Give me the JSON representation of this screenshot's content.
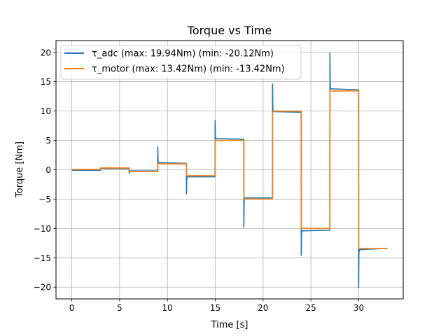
{
  "chart_data": {
    "type": "line",
    "title": "Torque vs Time",
    "xlabel": "Time [s]",
    "ylabel": "Torque [Nm]",
    "xlim": [
      -1.65,
      34.65
    ],
    "ylim": [
      -22.0,
      22.0
    ],
    "xticks": [
      0,
      5,
      10,
      15,
      20,
      25,
      30
    ],
    "yticks": [
      -20,
      -15,
      -10,
      -5,
      0,
      5,
      10,
      15,
      20
    ],
    "xtick_labels": [
      "0",
      "5",
      "10",
      "15",
      "20",
      "25",
      "30"
    ],
    "ytick_labels": [
      "−20",
      "−15",
      "−10",
      "−5",
      "0",
      "5",
      "10",
      "15",
      "20"
    ],
    "grid": true,
    "legend_position": "upper-left",
    "series": [
      {
        "name": "τ_adc (max: 19.94Nm) (min: -20.12Nm)",
        "color": "#1f77b4",
        "x": [
          0,
          3,
          3,
          6,
          6,
          6.02,
          6.05,
          8.98,
          8.99,
          9.02,
          9.1,
          11.98,
          11.99,
          12.02,
          12.1,
          14.98,
          14.99,
          15.02,
          15.1,
          17.98,
          17.99,
          18.02,
          18.1,
          20.98,
          20.99,
          21.02,
          21.1,
          23.98,
          23.99,
          24.02,
          24.1,
          26.98,
          26.99,
          27.02,
          27.1,
          29.98,
          29.99,
          30.02,
          30.1,
          33
        ],
        "y": [
          -0.1,
          -0.1,
          0.2,
          0.2,
          -0.5,
          -0.6,
          -0.2,
          -0.2,
          3.9,
          1.4,
          1.2,
          1.1,
          -4.1,
          -1.5,
          -1.2,
          -1.2,
          8.4,
          5.6,
          5.3,
          5.2,
          -9.8,
          -5.3,
          -4.8,
          -4.8,
          14.6,
          10.3,
          9.9,
          9.8,
          -14.6,
          -10.8,
          -10.4,
          -10.3,
          19.94,
          14.1,
          13.8,
          13.6,
          -20.12,
          -14.1,
          -13.6,
          -13.4
        ]
      },
      {
        "name": "τ_motor (max: 13.42Nm) (min: -13.42Nm)",
        "color": "#ff7f0e",
        "x": [
          0,
          3,
          3,
          6,
          6,
          9,
          9,
          12,
          12,
          15,
          15,
          18,
          18,
          21,
          21,
          24,
          24,
          27,
          27,
          30,
          30,
          33
        ],
        "y": [
          0.05,
          0.05,
          0.3,
          0.3,
          -0.3,
          -0.3,
          1.0,
          1.0,
          -1.0,
          -1.0,
          5.0,
          5.0,
          -5.0,
          -5.0,
          10.0,
          10.0,
          -10.0,
          -10.0,
          13.42,
          13.42,
          -13.42,
          -13.42
        ]
      }
    ]
  }
}
